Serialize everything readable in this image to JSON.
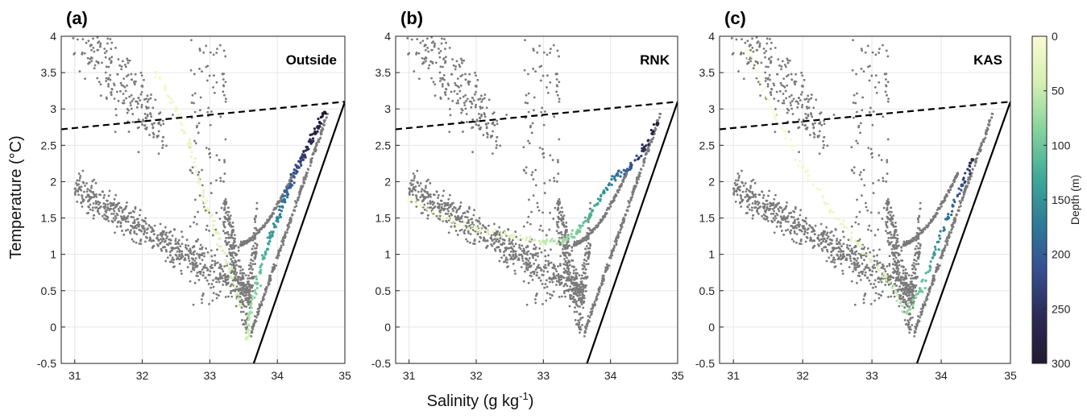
{
  "figure": {
    "ylabel": "Temperature (°C)",
    "xlabel": "Salinity (g kg",
    "xlabel_sup": "-1",
    "xlabel_end": ")"
  },
  "colorbar": {
    "label": "Depth (m)",
    "ticks": [
      "0",
      "50",
      "100",
      "150",
      "200",
      "250",
      "300"
    ],
    "tick_values": [
      0,
      50,
      100,
      150,
      200,
      250,
      300
    ],
    "colors": [
      "#fbfbd2",
      "#d5efb3",
      "#86d39d",
      "#3fab98",
      "#2e7b98",
      "#364f91",
      "#2c2955",
      "#221a31"
    ],
    "orientation": "vertical-right"
  },
  "chart_data": [
    {
      "type": "scatter",
      "panel_label": "(a)",
      "location_label": "Outside",
      "xlim": [
        30.8,
        35
      ],
      "ylim": [
        -0.5,
        4
      ],
      "xticks": [
        "31",
        "32",
        "33",
        "34",
        "35"
      ],
      "yticks": [
        "-0.5",
        "0",
        "0.5",
        "1",
        "1.5",
        "2",
        "2.5",
        "3",
        "3.5",
        "4"
      ],
      "grid": true,
      "background_series_color": "#7a7a7a",
      "highlight_series": [
        {
          "x": [
            33.55,
            33.6,
            33.7,
            33.8,
            33.9,
            34.0,
            34.1,
            34.2,
            34.3,
            34.4,
            34.5,
            34.6,
            34.7
          ],
          "y": [
            -0.15,
            0.2,
            0.6,
            0.95,
            1.25,
            1.5,
            1.75,
            1.95,
            2.2,
            2.35,
            2.55,
            2.75,
            2.95
          ],
          "depth": [
            40,
            70,
            95,
            120,
            140,
            160,
            180,
            200,
            220,
            240,
            260,
            280,
            295
          ]
        },
        {
          "x": [
            32.2,
            32.5,
            32.7,
            32.9,
            33.1,
            33.3,
            33.45
          ],
          "y": [
            3.5,
            3.0,
            2.5,
            1.8,
            1.3,
            0.8,
            0.3
          ],
          "depth": [
            10,
            15,
            20,
            25,
            30,
            35,
            40
          ]
        }
      ],
      "dashed_line": {
        "x": [
          30.8,
          35
        ],
        "y": [
          2.72,
          3.1
        ]
      },
      "freezing_line": {
        "x": [
          33.65,
          35
        ],
        "y": [
          -0.5,
          3.1
        ]
      }
    },
    {
      "type": "scatter",
      "panel_label": "(b)",
      "location_label": "RNK",
      "xlim": [
        30.8,
        35
      ],
      "ylim": [
        -0.5,
        4
      ],
      "xticks": [
        "31",
        "32",
        "33",
        "34",
        "35"
      ],
      "yticks": [
        "-0.5",
        "0",
        "0.5",
        "1",
        "1.5",
        "2",
        "2.5",
        "3",
        "3.5",
        "4"
      ],
      "grid": true,
      "background_series_color": "#7a7a7a",
      "highlight_series": [
        {
          "x": [
            31.0,
            31.5,
            32.0,
            32.5,
            33.0,
            33.3,
            33.5,
            33.7,
            33.9,
            34.1,
            34.3,
            34.5,
            34.7
          ],
          "y": [
            1.75,
            1.5,
            1.35,
            1.25,
            1.18,
            1.18,
            1.3,
            1.55,
            1.85,
            2.1,
            2.2,
            2.45,
            2.8
          ],
          "depth": [
            0,
            10,
            20,
            30,
            50,
            70,
            95,
            120,
            150,
            180,
            210,
            250,
            290
          ]
        }
      ],
      "dashed_line": {
        "x": [
          30.8,
          35
        ],
        "y": [
          2.72,
          3.1
        ]
      },
      "freezing_line": {
        "x": [
          33.65,
          35
        ],
        "y": [
          -0.5,
          3.1
        ]
      }
    },
    {
      "type": "scatter",
      "panel_label": "(c)",
      "location_label": "KAS",
      "xlim": [
        30.8,
        35
      ],
      "ylim": [
        -0.5,
        4
      ],
      "xticks": [
        "31",
        "32",
        "33",
        "34",
        "35"
      ],
      "yticks": [
        "-0.5",
        "0",
        "0.5",
        "1",
        "1.5",
        "2",
        "2.5",
        "3",
        "3.5",
        "4"
      ],
      "grid": true,
      "background_series_color": "#7a7a7a",
      "highlight_series": [
        {
          "x": [
            31.2,
            31.6,
            32.0,
            32.4,
            32.8,
            33.2,
            33.5,
            33.7,
            33.9,
            34.1,
            34.3,
            34.45
          ],
          "y": [
            3.8,
            2.9,
            2.2,
            1.6,
            1.15,
            0.7,
            0.2,
            0.5,
            1.0,
            1.5,
            1.95,
            2.3
          ],
          "depth": [
            0,
            5,
            10,
            15,
            25,
            40,
            70,
            100,
            140,
            180,
            220,
            260
          ]
        }
      ],
      "dashed_line": {
        "x": [
          30.8,
          35
        ],
        "y": [
          2.72,
          3.1
        ]
      },
      "freezing_line": {
        "x": [
          33.65,
          35
        ],
        "y": [
          -0.5,
          3.1
        ]
      }
    }
  ]
}
